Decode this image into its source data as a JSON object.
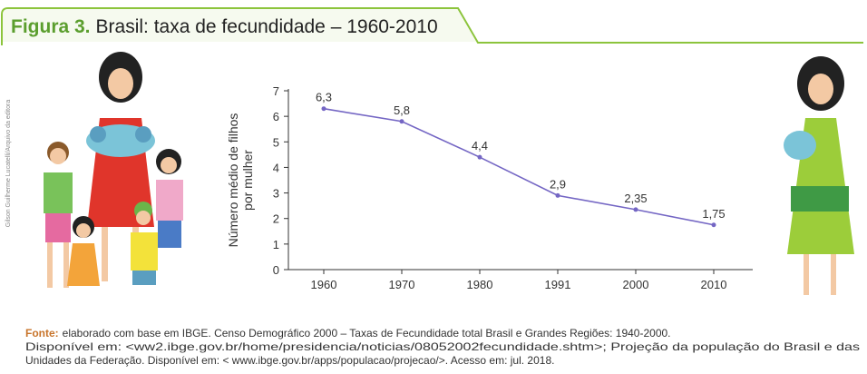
{
  "chart_data": {
    "type": "line",
    "title_prefix": "Figura 3.",
    "title": "Brasil: taxa de fecundidade – 1960-2010",
    "y_label": [
      "Número médio de filhos",
      "por mulher"
    ],
    "categories": [
      "1960",
      "1970",
      "1980",
      "1991",
      "2000",
      "2010"
    ],
    "values": [
      6.3,
      5.8,
      4.4,
      2.9,
      2.35,
      1.75
    ],
    "value_labels": [
      "6,3",
      "5,8",
      "4,4",
      "2,9",
      "2,35",
      "1,75"
    ],
    "color": "#7466c4",
    "ylim": [
      0,
      7
    ],
    "yticks": [
      0,
      1,
      2,
      3,
      4,
      5,
      6,
      7
    ],
    "credit": "Gilson Guilherme Lucatelli/Arquivo da editora",
    "source": {
      "label": "Fonte:",
      "lines": [
        "elaborado com base em IBGE. Censo Demográfico 2000 – Taxas de Fecundidade total Brasil e Grandes Regiões: 1940-2000.",
        "Disponível em: <ww2.ibge.gov.br/home/presidencia/noticias/08052002fecundidade.shtm>; Projeção da população do Brasil e das",
        "Unidades da Federação. Disponível em: < www.ibge.gov.br/apps/populacao/projecao/>. Acesso em: jul. 2018."
      ]
    }
  }
}
